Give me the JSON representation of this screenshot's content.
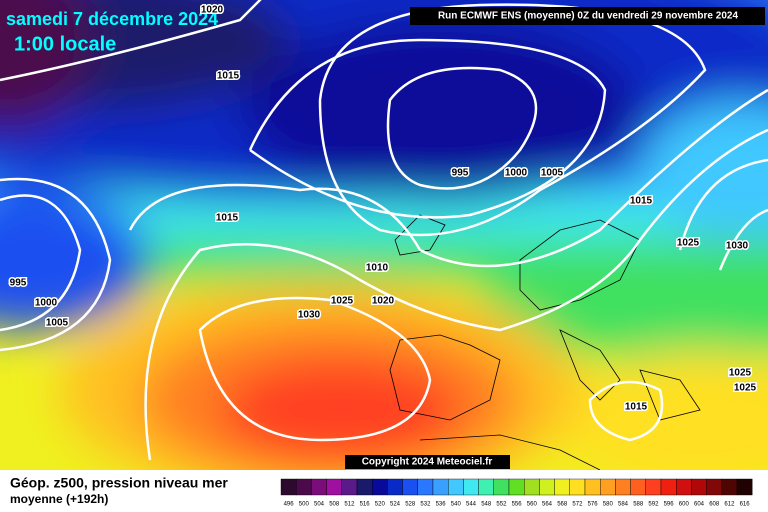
{
  "header": {
    "title": "samedi 7 décembre 2024",
    "subtitle": "1:00 locale",
    "run": "Run ECMWF ENS (moyenne) 0Z du vendredi 29 novembre 2024"
  },
  "isobar_labels": [
    1020,
    1015,
    995,
    1000,
    1005,
    1015,
    1015,
    1025,
    1030,
    995,
    1000,
    1005,
    1010,
    1025,
    1020,
    1030,
    1025,
    1025,
    1015
  ],
  "copyright": "Copyright 2024 Meteociel.fr",
  "footer": {
    "title": "Géop. z500, pression niveau mer",
    "subtitle": "moyenne  (+192h)"
  },
  "legend": {
    "levels": [
      496,
      500,
      504,
      508,
      512,
      516,
      520,
      524,
      528,
      532,
      536,
      540,
      544,
      548,
      552,
      556,
      560,
      564,
      568,
      572,
      576,
      580,
      584,
      588,
      592,
      596,
      600,
      604,
      608,
      612,
      616
    ],
    "colors": [
      "#2d0a2d",
      "#4b0b4b",
      "#7a0d7a",
      "#a010a0",
      "#5a1a8a",
      "#1a1a6a",
      "#0a0a9a",
      "#0a2ac8",
      "#1a50f0",
      "#2a78ff",
      "#3aa0ff",
      "#40c8ff",
      "#40e8f0",
      "#40f0b0",
      "#40e060",
      "#60e020",
      "#a0e020",
      "#d0f020",
      "#f0f020",
      "#ffe020",
      "#ffc020",
      "#ffa020",
      "#ff8020",
      "#ff6020",
      "#ff4020",
      "#f02010",
      "#d01010",
      "#b00808",
      "#800808",
      "#500505",
      "#200202"
    ]
  }
}
